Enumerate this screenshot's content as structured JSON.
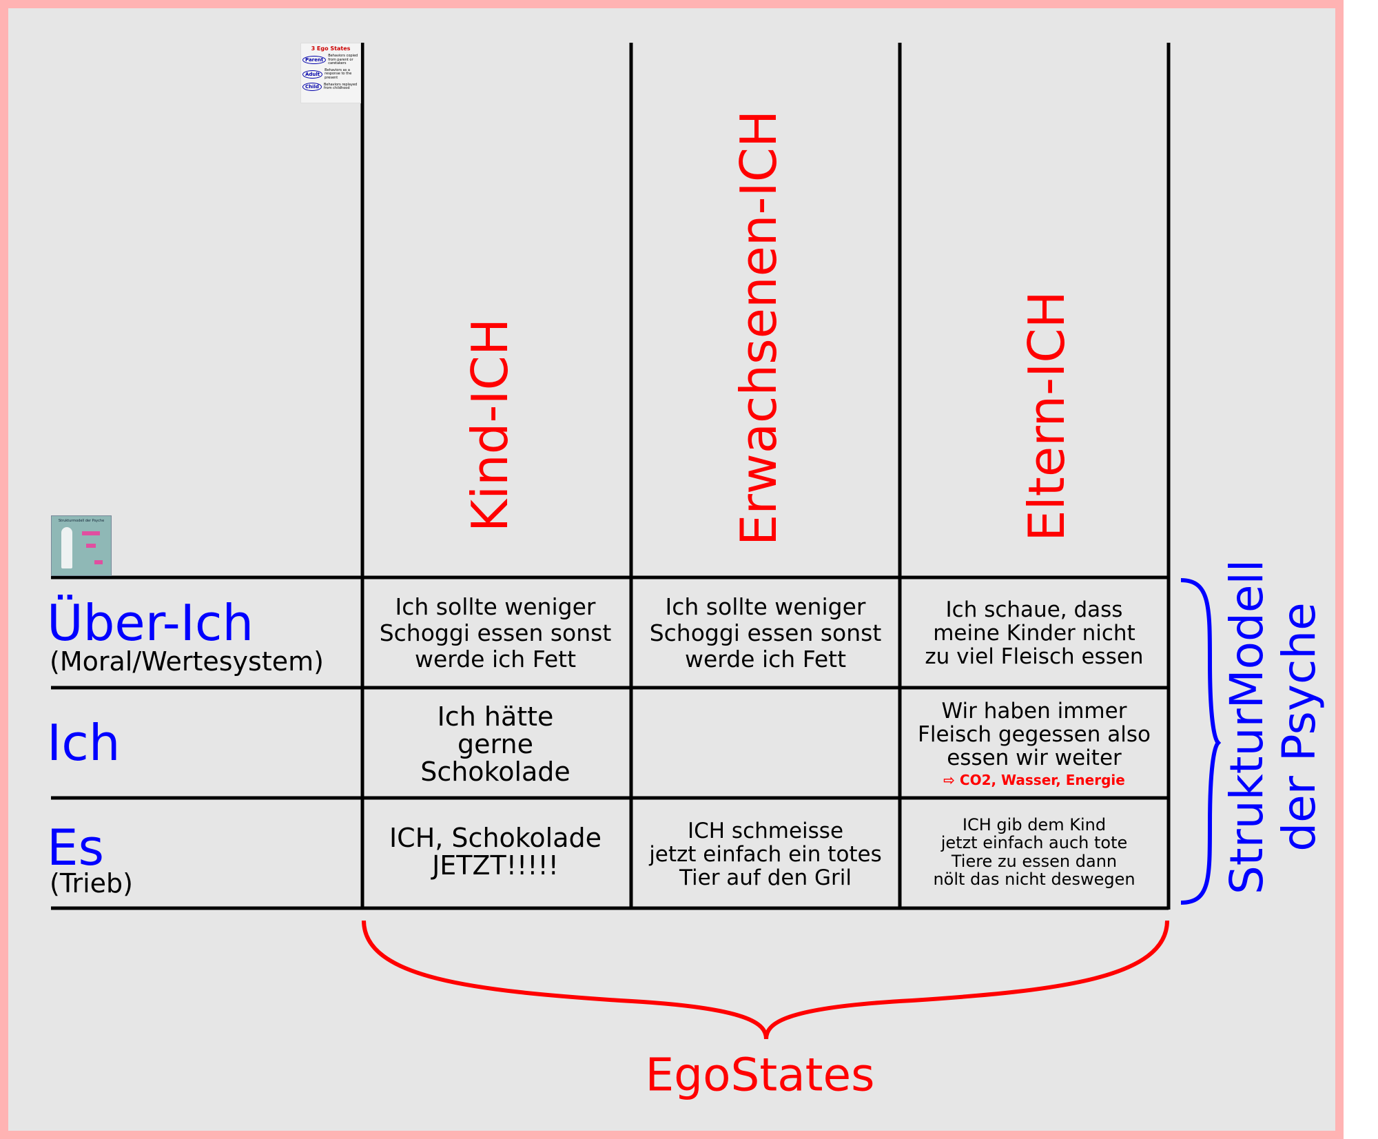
{
  "colors": {
    "ego_red": "#ff0000",
    "struct_blue": "#0000ff",
    "background": "#e6e6e6",
    "border": "#ffb3b3"
  },
  "columns": [
    "Kind-ICH",
    "Erwachsenen-ICH",
    "Eltern-ICH"
  ],
  "rows": [
    {
      "title": "Über-Ich",
      "subtitle": "(Moral/Wertesystem)"
    },
    {
      "title": "Ich",
      "subtitle": ""
    },
    {
      "title": "Es",
      "subtitle": "(Trieb)"
    }
  ],
  "cells": {
    "r0c0": [
      "Ich sollte weniger",
      "Schoggi essen sonst",
      "werde ich Fett"
    ],
    "r0c1": [
      "Ich sollte weniger",
      "Schoggi essen sonst",
      "werde ich Fett"
    ],
    "r0c2": [
      "Ich schaue, dass",
      "meine Kinder nicht",
      "zu viel Fleisch essen"
    ],
    "r1c0": [
      "Ich hätte",
      "gerne",
      "Schokolade"
    ],
    "r1c2": [
      "Wir haben immer",
      "Fleisch gegessen also",
      "essen wir weiter"
    ],
    "r1c2_note": "⇨ CO2, Wasser, Energie",
    "r2c0": [
      "ICH, Schokolade",
      "JETZT!!!!!"
    ],
    "r2c1": [
      "ICH schmeisse",
      "jetzt einfach ein totes",
      "Tier auf den Gril"
    ],
    "r2c2": [
      "ICH gib dem Kind",
      "jetzt einfach auch tote",
      "Tiere zu essen dann",
      "nölt das nicht deswegen"
    ]
  },
  "brace_bottom_label": "EgoStates",
  "brace_right_label": [
    "StrukturModell",
    "der Psyche"
  ],
  "thumbnail_ego_states": {
    "title": "3 Ego States",
    "items": [
      {
        "label": "Parent",
        "desc": "Behaviors copied from parent or caretakers"
      },
      {
        "label": "Adult",
        "desc": "Behaviors as a response to the present"
      },
      {
        "label": "Child",
        "desc": "Behaviors replayed from childhood"
      }
    ]
  },
  "thumbnail_strukturmodell": {
    "title": "Strukturmodell der Psyche",
    "icon": "freud-figure-icon"
  }
}
